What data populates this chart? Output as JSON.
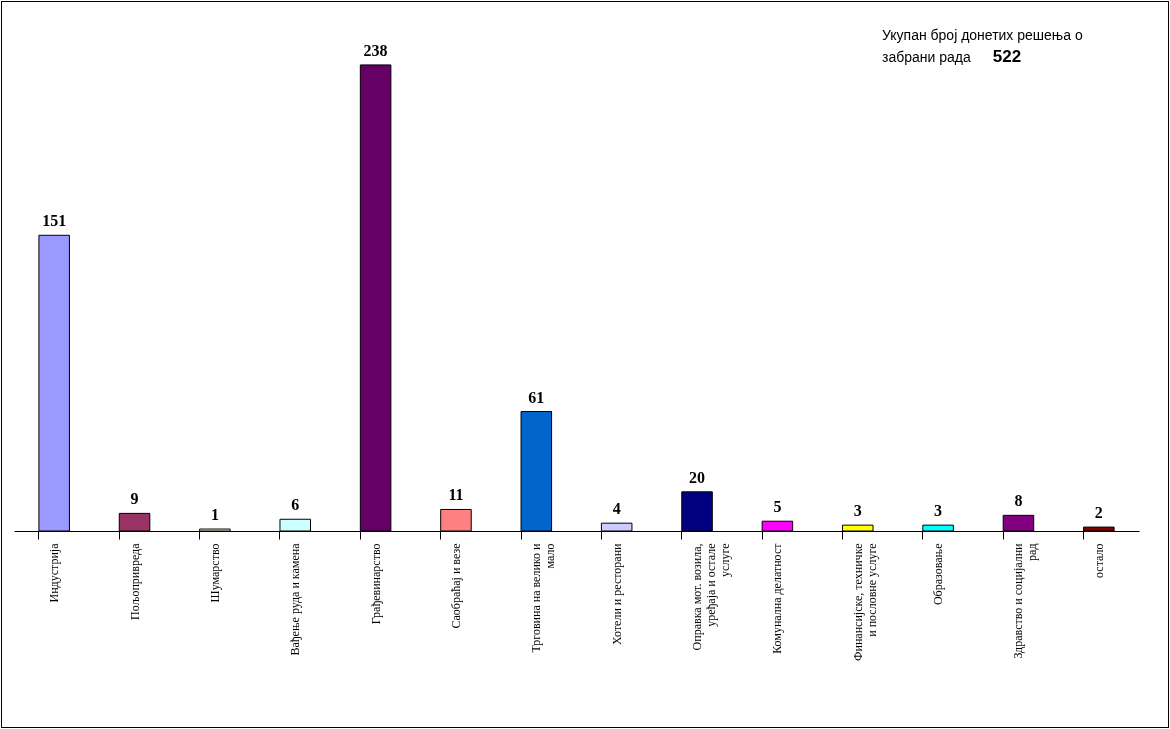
{
  "chart_data": {
    "type": "bar",
    "categories": [
      "Индустрија",
      "Пољопривреда",
      "Шумарство",
      "Вађење руда и камена",
      "Грађевинарство",
      "Саобраћај и везе",
      "Трговина на велико и мало",
      "Хотели и ресторани",
      "Оправка мот. возила, уређаја и остале услуге",
      "Комунална делатност",
      "Финансијске, техничке и пословне услуге",
      "Образовање",
      "Здравство и социјални рад",
      "остало"
    ],
    "values": [
      151,
      9,
      1,
      6,
      238,
      11,
      61,
      4,
      20,
      5,
      3,
      3,
      8,
      2
    ],
    "colors": [
      "#9999ff",
      "#993366",
      "#ffffcc",
      "#ccffff",
      "#660066",
      "#ff8080",
      "#0066cc",
      "#ccccff",
      "#000080",
      "#ff00ff",
      "#ffff00",
      "#00ffff",
      "#800080",
      "#800000"
    ],
    "data_labels": true,
    "annotations": [
      "Укупан број донетих решења о забрани рада",
      "522"
    ]
  }
}
